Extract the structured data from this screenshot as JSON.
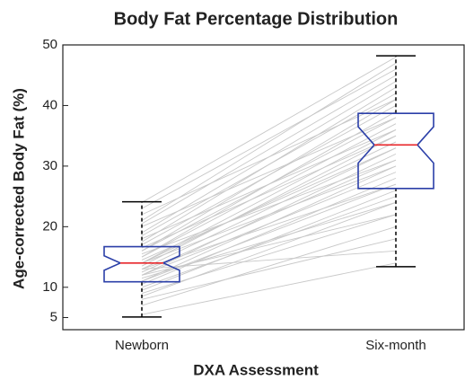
{
  "chart_data": {
    "type": "box",
    "title": "Body Fat Percentage Distribution",
    "x_label": "DXA Assessment",
    "y_label": "Age-corrected Body Fat (%)",
    "categories": [
      "Newborn",
      "Six-month"
    ],
    "boxes": [
      {
        "whislo": 5.1,
        "q1": 10.9,
        "notch_lo": 12.8,
        "med": 14,
        "notch_hi": 15.2,
        "q3": 16.7,
        "whishi": 24.1
      },
      {
        "whislo": 13.4,
        "q1": 26.3,
        "notch_lo": 30.5,
        "med": 33.5,
        "notch_hi": 36.5,
        "q3": 38.7,
        "whishi": 48.2
      }
    ],
    "pairs": [
      [
        5.5,
        7,
        8,
        8.5,
        9,
        9.5,
        10,
        10.5,
        11,
        11,
        11.5,
        12,
        12,
        12.5,
        13,
        13,
        13.5,
        14,
        14,
        14,
        14.5,
        15,
        15,
        15.5,
        16,
        16,
        16.5,
        17,
        17.5,
        18,
        18.5,
        19,
        20,
        20.5,
        21,
        22,
        23,
        24,
        13,
        12
      ],
      [
        14,
        20,
        18,
        24,
        22,
        26,
        25,
        28,
        27,
        30,
        24,
        29,
        32,
        31,
        33,
        27,
        35,
        34,
        30,
        36,
        33,
        37,
        39,
        31,
        38,
        41,
        35,
        40,
        43,
        36,
        42,
        44,
        38,
        45,
        47,
        41,
        46,
        48,
        16,
        22
      ]
    ],
    "box_color": "#2b3fa8",
    "median_color": "#e8262a",
    "pair_color": "#c8c8c8",
    "ylim": [
      3,
      50
    ],
    "yticks": [
      5,
      10,
      20,
      30,
      40,
      50
    ]
  }
}
